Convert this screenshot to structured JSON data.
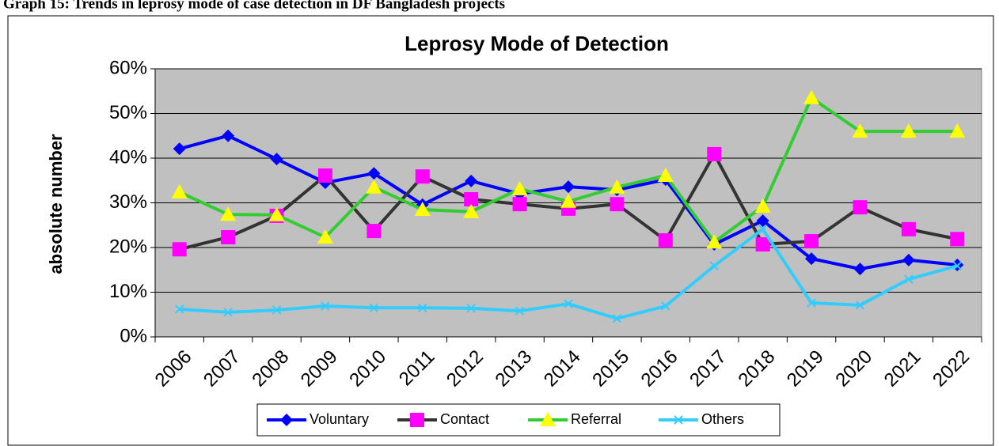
{
  "heading": "Graph 15: Trends in leprosy mode of case detection in DF Bangladesh projects",
  "chart_data": {
    "type": "line",
    "title": "Leprosy Mode of Detection",
    "y_label": "absolute number",
    "categories": [
      "2006",
      "2007",
      "2008",
      "2009",
      "2010",
      "2011",
      "2012",
      "2013",
      "2014",
      "2015",
      "2016",
      "2017",
      "2018",
      "2019",
      "2020",
      "2021",
      "2022"
    ],
    "series": [
      {
        "name": "Voluntary",
        "color": "#0000ff",
        "marker_color": "#0000ff",
        "marker": "diamond",
        "values": [
          42.1,
          45,
          39.8,
          34.5,
          36.6,
          29.6,
          34.9,
          32,
          33.6,
          32.9,
          35.2,
          20.7,
          26,
          17.5,
          15.2,
          17.2,
          16.1
        ]
      },
      {
        "name": "Contact",
        "color": "#333333",
        "marker_color": "#ff00ff",
        "marker": "square",
        "values": [
          19.6,
          22.3,
          27.1,
          36.1,
          23.7,
          35.9,
          30.8,
          29.7,
          28.7,
          29.7,
          21.6,
          40.9,
          20.7,
          21.4,
          29,
          24.1,
          21.9
        ]
      },
      {
        "name": "Referral",
        "color": "#33cc33",
        "marker_color": "#ffff00",
        "marker": "triangle",
        "values": [
          32.4,
          27.4,
          27.3,
          22.3,
          33.5,
          28.5,
          28,
          33.1,
          30.3,
          33.5,
          36.1,
          21.2,
          29.2,
          53.5,
          46,
          46,
          46
        ]
      },
      {
        "name": "Others",
        "color": "#33ccff",
        "marker_color": "#33ccff",
        "marker": "x",
        "values": [
          6.2,
          5.5,
          6,
          6.9,
          6.5,
          6.5,
          6.4,
          5.8,
          7.4,
          4.1,
          6.9,
          15.9,
          24.1,
          7.6,
          7.1,
          12.9,
          15.9
        ]
      }
    ],
    "ylim": [
      0,
      60
    ],
    "yticks": [
      {
        "value": 0,
        "label": "0%"
      },
      {
        "value": 10,
        "label": "10%"
      },
      {
        "value": 20,
        "label": "20%"
      },
      {
        "value": 30,
        "label": "30%"
      },
      {
        "value": 40,
        "label": "40%"
      },
      {
        "value": 50,
        "label": "50%"
      },
      {
        "value": 60,
        "label": "60%"
      }
    ],
    "grid": true,
    "legend": "bottom"
  }
}
